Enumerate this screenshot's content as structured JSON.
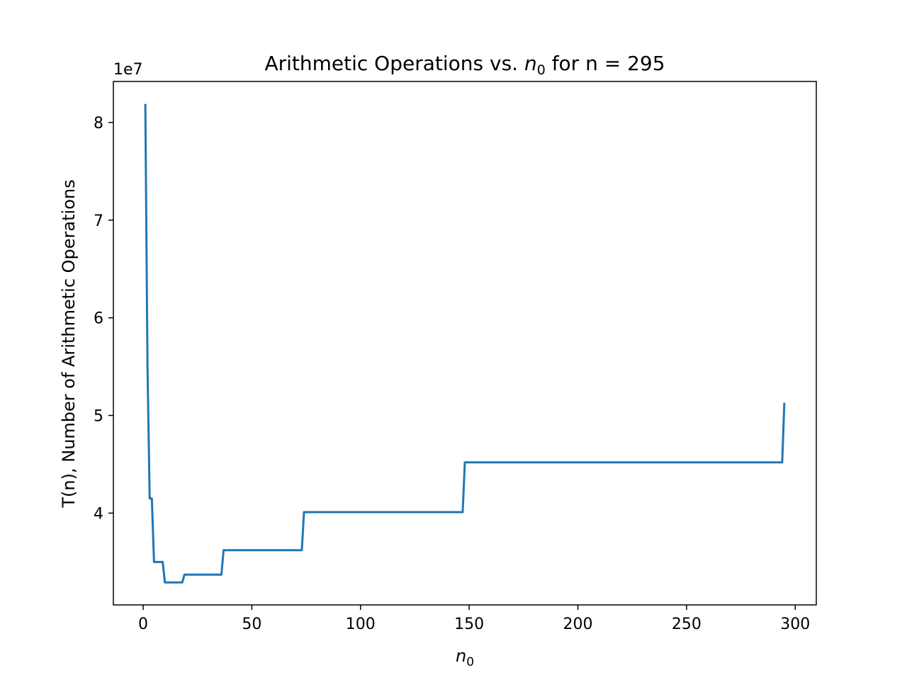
{
  "chart_data": {
    "type": "line",
    "title": "Arithmetic Operations vs. n0 for n = 295",
    "title_parts": {
      "prefix": "Arithmetic Operations vs. ",
      "var_base": "n",
      "var_sub": "0",
      "suffix": " for n = 295"
    },
    "xlabel": "n0",
    "xlabel_parts": {
      "base": "n",
      "sub": "0"
    },
    "ylabel": "T(n), Number of Arithmetic Operations",
    "y_offset_label": "1e7",
    "xlim": [
      -13.7,
      309.7
    ],
    "ylim": [
      3.06,
      8.42
    ],
    "x_ticks": [
      0,
      50,
      100,
      150,
      200,
      250,
      300
    ],
    "x_tick_labels": [
      "0",
      "50",
      "100",
      "150",
      "200",
      "250",
      "300"
    ],
    "y_ticks": [
      4,
      5,
      6,
      7,
      8
    ],
    "y_tick_labels": [
      "4",
      "5",
      "6",
      "7",
      "8"
    ],
    "grid": false,
    "series": [
      {
        "color": "#1f77b4",
        "x": [
          1,
          2,
          3,
          4,
          5,
          9,
          10,
          18,
          19,
          36,
          37,
          73,
          74,
          147,
          148,
          294,
          295
        ],
        "y": [
          8.19,
          5.5,
          4.15,
          4.15,
          3.5,
          3.5,
          3.29,
          3.29,
          3.37,
          3.37,
          3.62,
          3.62,
          4.01,
          4.01,
          4.52,
          4.52,
          5.13
        ]
      }
    ]
  }
}
